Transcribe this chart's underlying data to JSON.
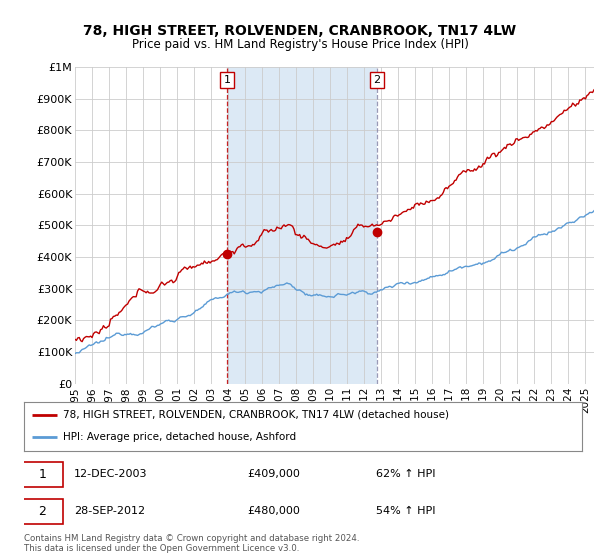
{
  "title": "78, HIGH STREET, ROLVENDEN, CRANBROOK, TN17 4LW",
  "subtitle": "Price paid vs. HM Land Registry's House Price Index (HPI)",
  "legend_line1": "78, HIGH STREET, ROLVENDEN, CRANBROOK, TN17 4LW (detached house)",
  "legend_line2": "HPI: Average price, detached house, Ashford",
  "sale1_date": "12-DEC-2003",
  "sale1_price": 409000,
  "sale1_pct": "62% ↑ HPI",
  "sale2_date": "28-SEP-2012",
  "sale2_price": 480000,
  "sale2_pct": "54% ↑ HPI",
  "footer": "Contains HM Land Registry data © Crown copyright and database right 2024.\nThis data is licensed under the Open Government Licence v3.0.",
  "hpi_color": "#5b9bd5",
  "price_color": "#c00000",
  "vline1_color": "#c00000",
  "vline2_color": "#8888aa",
  "shade_color": "#dce9f5",
  "grid_color": "#cccccc",
  "bg_color": "#ffffff",
  "ylim": [
    0,
    1000000
  ],
  "yticks": [
    0,
    100000,
    200000,
    300000,
    400000,
    500000,
    600000,
    700000,
    800000,
    900000,
    1000000
  ],
  "sale1_x": 2003.95,
  "sale2_x": 2012.73,
  "xstart": 1995.0,
  "xend": 2025.5
}
